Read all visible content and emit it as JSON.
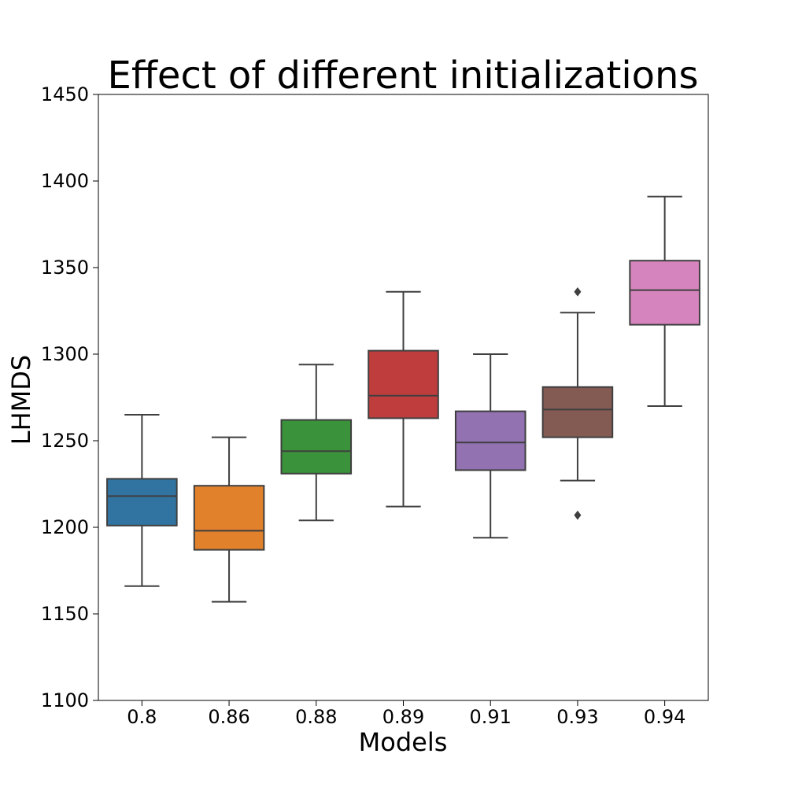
{
  "chart_data": {
    "type": "box",
    "title": "Effect of different initializations",
    "xlabel": "Models",
    "ylabel": "LHMDS",
    "ylim": [
      1100,
      1450
    ],
    "yticks": [
      1100,
      1150,
      1200,
      1250,
      1300,
      1350,
      1400,
      1450
    ],
    "grid": false,
    "categories": [
      "0.8",
      "0.86",
      "0.88",
      "0.89",
      "0.91",
      "0.93",
      "0.94"
    ],
    "boxes": [
      {
        "category": "0.8",
        "whisker_low": 1166,
        "q1": 1201,
        "median": 1218,
        "q3": 1228,
        "whisker_high": 1265,
        "outliers": [],
        "color": "#3274a1"
      },
      {
        "category": "0.86",
        "whisker_low": 1157,
        "q1": 1187,
        "median": 1198,
        "q3": 1224,
        "whisker_high": 1252,
        "outliers": [],
        "color": "#e1812c"
      },
      {
        "category": "0.88",
        "whisker_low": 1204,
        "q1": 1231,
        "median": 1244,
        "q3": 1262,
        "whisker_high": 1294,
        "outliers": [],
        "color": "#3a923a"
      },
      {
        "category": "0.89",
        "whisker_low": 1212,
        "q1": 1263,
        "median": 1276,
        "q3": 1302,
        "whisker_high": 1336,
        "outliers": [],
        "color": "#c03d3e"
      },
      {
        "category": "0.91",
        "whisker_low": 1194,
        "q1": 1233,
        "median": 1249,
        "q3": 1267,
        "whisker_high": 1300,
        "outliers": [],
        "color": "#9372b2"
      },
      {
        "category": "0.93",
        "whisker_low": 1227,
        "q1": 1252,
        "median": 1268,
        "q3": 1281,
        "whisker_high": 1324,
        "outliers": [
          1207,
          1336
        ],
        "color": "#845b53"
      },
      {
        "category": "0.94",
        "whisker_low": 1270,
        "q1": 1317,
        "median": 1337,
        "q3": 1354,
        "whisker_high": 1391,
        "outliers": [],
        "color": "#d684bd"
      }
    ],
    "line_color": "#3f3f3f"
  }
}
